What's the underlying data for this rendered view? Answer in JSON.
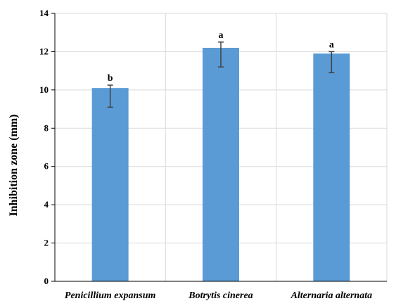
{
  "chart_data": {
    "type": "bar",
    "categories": [
      "Penicillium expansum",
      "Botrytis cinerea",
      "Alternaria alternata"
    ],
    "values": [
      10.1,
      12.2,
      11.9
    ],
    "error_upper": [
      10.25,
      12.5,
      12.0
    ],
    "error_lower": [
      9.1,
      11.2,
      10.9
    ],
    "significance_labels": [
      "b",
      "a",
      "a"
    ],
    "ylabel": "Inhibition  zone (mm)",
    "xlabel": "",
    "ylim": [
      0,
      14
    ],
    "yticks": [
      "0",
      "2",
      "4",
      "6",
      "8",
      "10",
      "12",
      "14"
    ],
    "grid": true,
    "bar_color": "#5b9bd5",
    "error_color": "#404040"
  }
}
